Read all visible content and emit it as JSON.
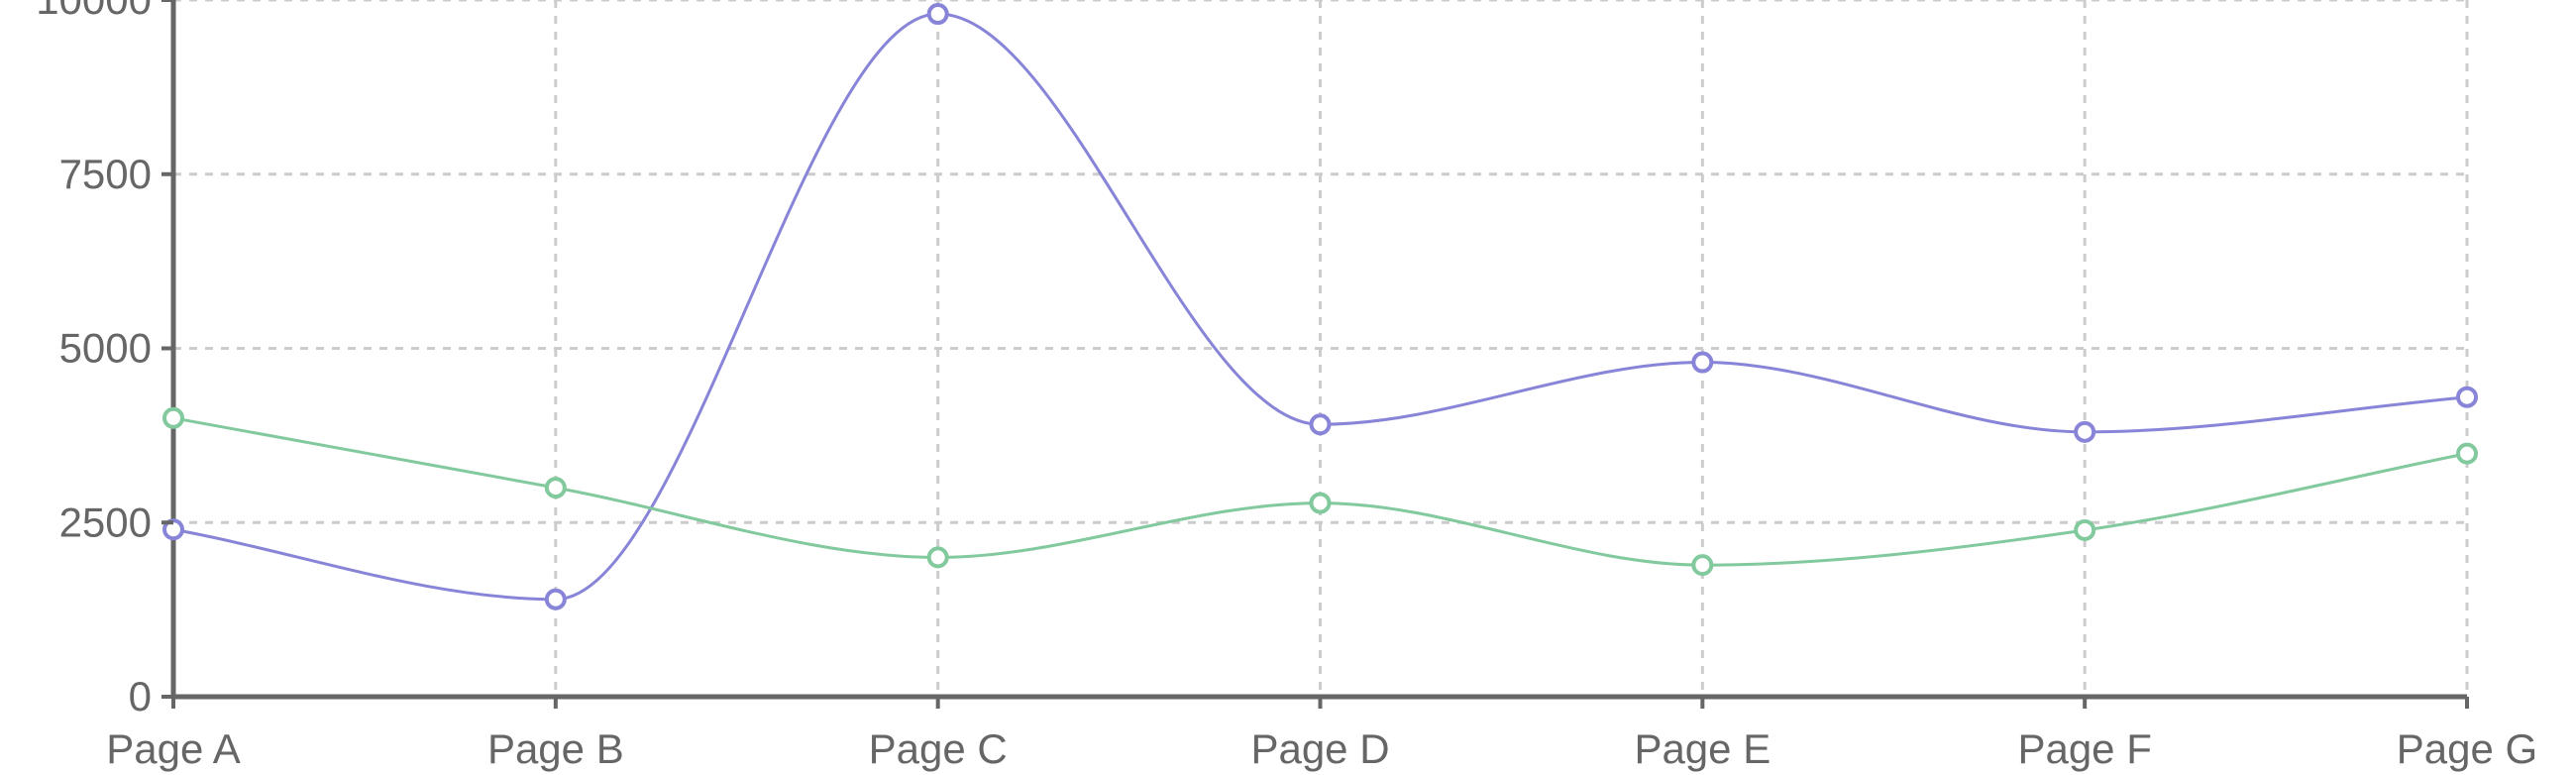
{
  "chart_data": {
    "type": "line",
    "categories": [
      "Page A",
      "Page B",
      "Page C",
      "Page D",
      "Page E",
      "Page F",
      "Page G"
    ],
    "series": [
      {
        "key": "purple",
        "values": [
          2400,
          1398,
          9800,
          3908,
          4800,
          3800,
          4300
        ],
        "color": "#8884d8"
      },
      {
        "key": "green",
        "values": [
          4000,
          3000,
          2000,
          2780,
          1890,
          2390,
          3490
        ],
        "color": "#82ca9d"
      }
    ],
    "yticks": [
      0,
      2500,
      5000,
      7500,
      10000
    ],
    "ylim": [
      0,
      10000
    ],
    "grid": true,
    "curve": "monotone",
    "title": "",
    "xlabel": "",
    "ylabel": ""
  }
}
